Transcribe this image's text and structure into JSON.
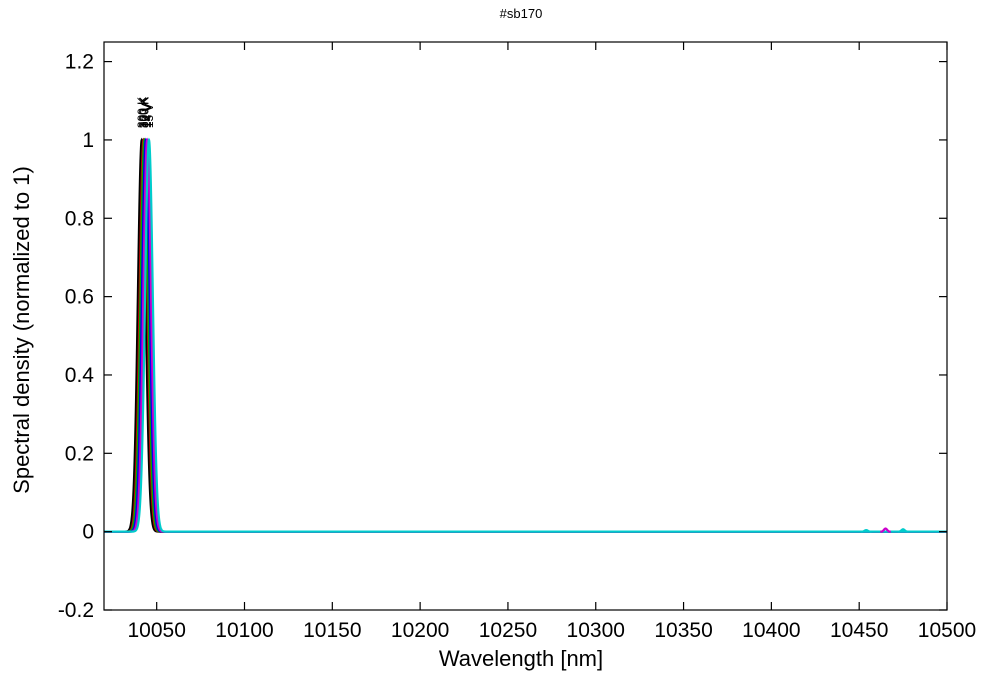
{
  "chart_data": {
    "type": "line",
    "title": "#sb170",
    "xlabel": "Wavelength [nm]",
    "ylabel": "Spectral density (normalized to 1)",
    "xlim": [
      10020,
      10500
    ],
    "ylim": [
      -0.2,
      1.25
    ],
    "x_ticks": [
      10050,
      10100,
      10150,
      10200,
      10250,
      10300,
      10350,
      10400,
      10450,
      10500
    ],
    "y_ticks": [
      -0.2,
      0,
      0.2,
      0.4,
      0.6,
      0.8,
      1,
      1.2
    ],
    "y_tick_labels": [
      "-0.2",
      "0",
      "0.2",
      "0.4",
      "0.6",
      "0.8",
      "1",
      "1.2"
    ],
    "grid": false,
    "peak_labels": [
      "300 K",
      "300 K",
      "300 K",
      "12 V",
      "14 V",
      "15 V"
    ],
    "series": [
      {
        "color": "#000000",
        "center": 10041.5,
        "width": 2.2
      },
      {
        "color": "#cc0000",
        "center": 10042.5,
        "width": 2.2
      },
      {
        "color": "#00aa00",
        "center": 10043.0,
        "width": 2.2
      },
      {
        "color": "#0000ee",
        "center": 10043.8,
        "width": 2.2
      },
      {
        "color": "#cc00cc",
        "center": 10044.6,
        "width": 2.2
      },
      {
        "color": "#00cccc",
        "center": 10045.6,
        "width": 2.2
      }
    ],
    "side_bumps": [
      {
        "x": 10454,
        "y": 0.004,
        "color": "#00cccc"
      },
      {
        "x": 10465,
        "y": 0.008,
        "color": "#cc00cc"
      },
      {
        "x": 10475,
        "y": 0.006,
        "color": "#00cccc"
      }
    ]
  }
}
